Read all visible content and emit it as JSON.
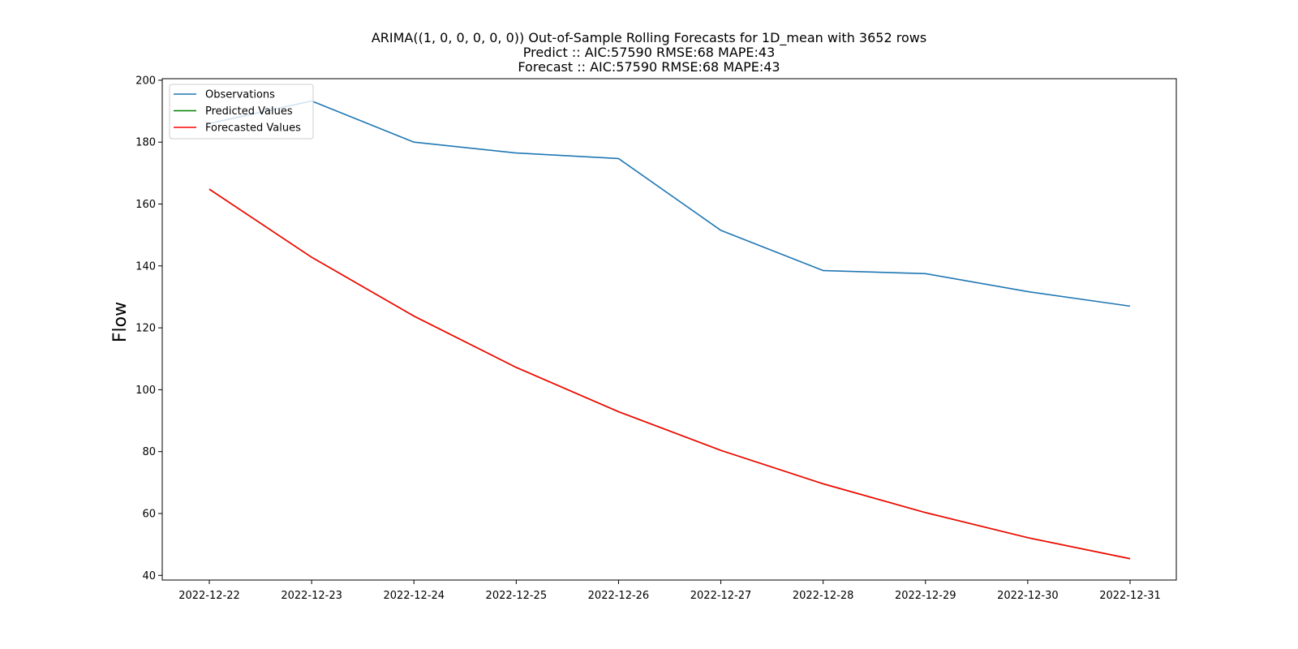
{
  "chart_data": {
    "type": "line",
    "title_lines": [
      "ARIMA((1, 0, 0, 0, 0, 0)) Out-of-Sample Rolling Forecasts for 1D_mean with 3652 rows",
      "Predict :: AIC:57590 RMSE:68 MAPE:43",
      "Forecast :: AIC:57590 RMSE:68 MAPE:43"
    ],
    "xlabel": "",
    "ylabel": "Flow",
    "x": [
      "2022-12-22",
      "2022-12-23",
      "2022-12-24",
      "2022-12-25",
      "2022-12-26",
      "2022-12-27",
      "2022-12-28",
      "2022-12-29",
      "2022-12-30",
      "2022-12-31"
    ],
    "ylim": [
      38.5,
      200.5
    ],
    "yticks": [
      40,
      60,
      80,
      100,
      120,
      140,
      160,
      180,
      200
    ],
    "grid": false,
    "legend_position": "upper-left",
    "series": [
      {
        "name": "Observations",
        "color": "#1f77b4",
        "values": [
          186,
          193.3,
          180,
          176.5,
          174.7,
          151.5,
          138.5,
          137.5,
          131.7,
          127
        ]
      },
      {
        "name": "Predicted Values",
        "color": "#008000",
        "values": [
          164.8,
          142.8,
          123.8,
          107.2,
          92.9,
          80.4,
          69.6,
          60.3,
          52.2,
          45.4
        ]
      },
      {
        "name": "Forecasted Values",
        "color": "#ff0000",
        "values": [
          164.8,
          142.8,
          123.8,
          107.2,
          92.9,
          80.4,
          69.6,
          60.3,
          52.2,
          45.4
        ]
      }
    ]
  }
}
